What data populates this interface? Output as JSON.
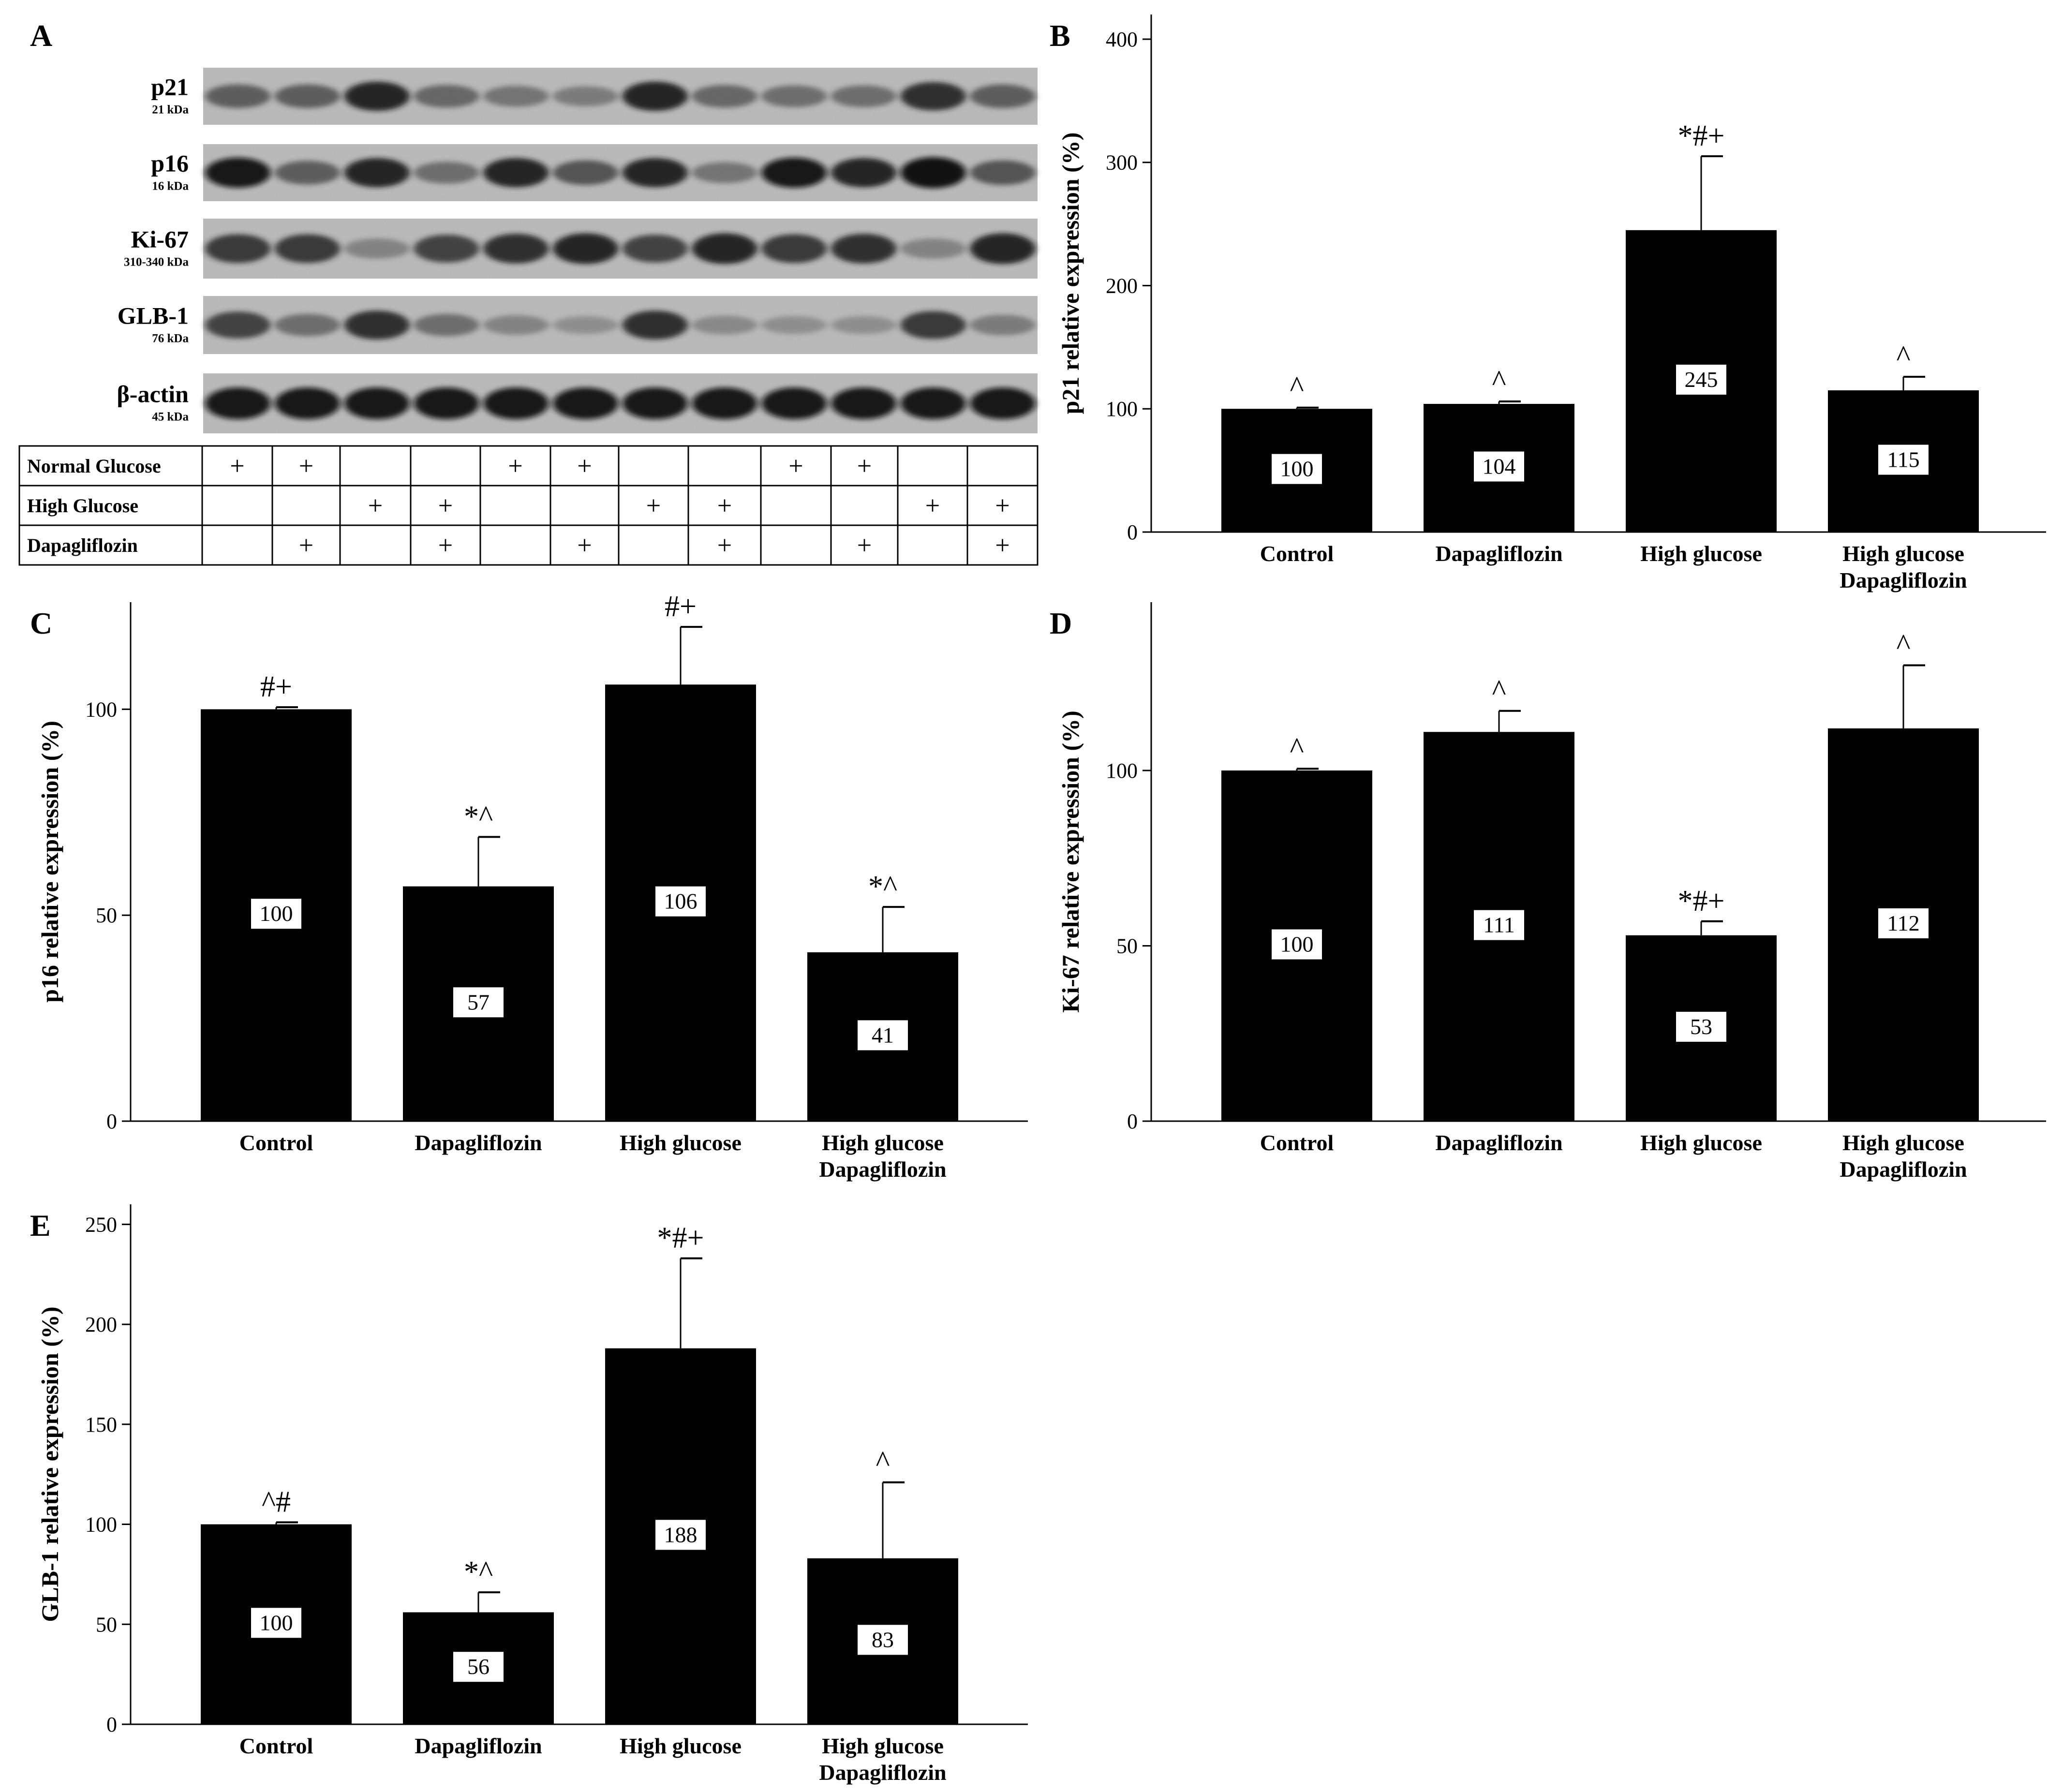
{
  "panel_letters": [
    "A",
    "B",
    "C",
    "D",
    "E"
  ],
  "blot": {
    "proteins": [
      {
        "name": "p21",
        "weight": "21 kDa"
      },
      {
        "name": "p16",
        "weight": "16 kDa"
      },
      {
        "name": "Ki-67",
        "weight": "310-340 kDa"
      },
      {
        "name": "GLB-1",
        "weight": "76 kDa"
      },
      {
        "name": "β-actin",
        "weight": "45 kDa"
      }
    ],
    "band_intensity": [
      [
        0.55,
        0.55,
        0.85,
        0.5,
        0.4,
        0.35,
        0.85,
        0.5,
        0.45,
        0.45,
        0.8,
        0.55
      ],
      [
        0.9,
        0.55,
        0.85,
        0.45,
        0.85,
        0.6,
        0.85,
        0.4,
        0.9,
        0.85,
        0.95,
        0.6
      ],
      [
        0.75,
        0.75,
        0.3,
        0.7,
        0.8,
        0.85,
        0.7,
        0.85,
        0.75,
        0.8,
        0.3,
        0.85
      ],
      [
        0.7,
        0.45,
        0.8,
        0.45,
        0.3,
        0.2,
        0.8,
        0.25,
        0.2,
        0.2,
        0.75,
        0.35
      ],
      [
        0.9,
        0.9,
        0.9,
        0.9,
        0.9,
        0.9,
        0.9,
        0.9,
        0.9,
        0.9,
        0.9,
        0.9
      ]
    ],
    "treatment_rows": [
      {
        "label": "Normal Glucose",
        "marks": [
          "+",
          "+",
          "",
          "",
          "+",
          "+",
          "",
          "",
          "+",
          "+",
          "",
          ""
        ]
      },
      {
        "label": "High Glucose",
        "marks": [
          "",
          "",
          "+",
          "+",
          "",
          "",
          "+",
          "+",
          "",
          "",
          "+",
          "+"
        ]
      },
      {
        "label": "Dapagliflozin",
        "marks": [
          "",
          "+",
          "",
          "+",
          "",
          "+",
          "",
          "+",
          "",
          "+",
          "",
          "+"
        ]
      }
    ]
  },
  "chart_data": [
    {
      "panel": "B",
      "type": "bar",
      "categories": [
        "Control",
        "Dapagliflozin",
        "High glucose",
        "High glucose\nDapagliflozin"
      ],
      "values": [
        100,
        104,
        245,
        115
      ],
      "errors": [
        1,
        2,
        60,
        11
      ],
      "data_labels": [
        "100",
        "104",
        "245",
        "115"
      ],
      "annotations": [
        "^",
        "^",
        "*#+",
        "^"
      ],
      "ylabel": "p21 relative expression (%)",
      "ylim": [
        0,
        420
      ],
      "yticks": [
        0,
        100,
        200,
        300,
        400
      ]
    },
    {
      "panel": "C",
      "type": "bar",
      "categories": [
        "Control",
        "Dapagliflozin",
        "High glucose",
        "High glucose\nDapagliflozin"
      ],
      "values": [
        100,
        57,
        106,
        41
      ],
      "errors": [
        0.5,
        12,
        14,
        11
      ],
      "data_labels": [
        "100",
        "57",
        "106",
        "41"
      ],
      "annotations": [
        "#+",
        "*^",
        "#+",
        "*^"
      ],
      "ylabel": "p16 relative expression (%)",
      "ylim": [
        0,
        126
      ],
      "yticks": [
        0,
        50,
        100
      ]
    },
    {
      "panel": "D",
      "type": "bar",
      "categories": [
        "Control",
        "Dapagliflozin",
        "High glucose",
        "High glucose\nDapagliflozin"
      ],
      "values": [
        100,
        111,
        53,
        112
      ],
      "errors": [
        0.5,
        6,
        4,
        18
      ],
      "data_labels": [
        "100",
        "111",
        "53",
        "112"
      ],
      "annotations": [
        "^",
        "^",
        "*#+",
        "^"
      ],
      "ylabel": "Ki-67 relative expression (%)",
      "ylim": [
        0,
        148
      ],
      "yticks": [
        0,
        50,
        100
      ]
    },
    {
      "panel": "E",
      "type": "bar",
      "categories": [
        "Control",
        "Dapagliflozin",
        "High glucose",
        "High glucose\nDapagliflozin"
      ],
      "values": [
        100,
        56,
        188,
        83
      ],
      "errors": [
        1,
        10,
        45,
        38
      ],
      "data_labels": [
        "100",
        "56",
        "188",
        "83"
      ],
      "annotations": [
        "^#",
        "*^",
        "*#+",
        "^"
      ],
      "ylabel": "GLB-1 relative expression (%)",
      "ylim": [
        0,
        260
      ],
      "yticks": [
        0,
        50,
        100,
        150,
        200,
        250
      ]
    }
  ]
}
